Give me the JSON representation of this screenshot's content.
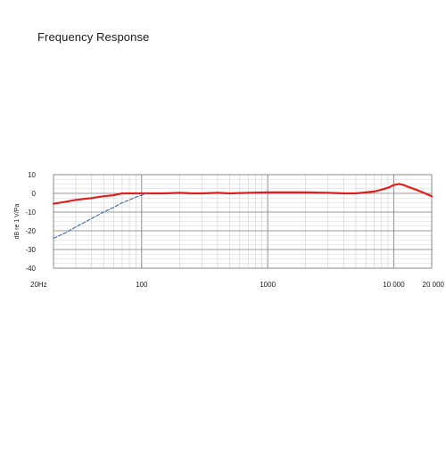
{
  "header": {
    "title": "Frequency Response"
  },
  "chart_data": {
    "type": "line",
    "title": "",
    "xlabel": "",
    "ylabel": "dB re 1 V/Pa",
    "x_scale": "log",
    "xlim": [
      20,
      20000
    ],
    "ylim": [
      -40,
      10
    ],
    "grid": true,
    "x_ticks": [
      {
        "value": 20,
        "label": "20Hz"
      },
      {
        "value": 100,
        "label": "100"
      },
      {
        "value": 1000,
        "label": "1000"
      },
      {
        "value": 10000,
        "label": "10 000"
      },
      {
        "value": 20000,
        "label": "20 000"
      }
    ],
    "y_ticks": [
      {
        "value": 10,
        "label": "10"
      },
      {
        "value": 0,
        "label": "0"
      },
      {
        "value": -10,
        "label": "-10"
      },
      {
        "value": -20,
        "label": "-20"
      },
      {
        "value": -30,
        "label": "-30"
      },
      {
        "value": -40,
        "label": "-40"
      }
    ],
    "series": [
      {
        "color": "#e02020",
        "style": "solid",
        "points": [
          [
            20,
            -5.5
          ],
          [
            25,
            -4.5
          ],
          [
            30,
            -3.5
          ],
          [
            40,
            -2.5
          ],
          [
            50,
            -1.5
          ],
          [
            60,
            -1
          ],
          [
            70,
            0
          ],
          [
            100,
            0
          ],
          [
            150,
            0
          ],
          [
            200,
            0.3
          ],
          [
            250,
            0
          ],
          [
            300,
            0
          ],
          [
            400,
            0.3
          ],
          [
            500,
            0
          ],
          [
            700,
            0.3
          ],
          [
            1000,
            0.5
          ],
          [
            1500,
            0.5
          ],
          [
            2000,
            0.5
          ],
          [
            3000,
            0.3
          ],
          [
            4000,
            0
          ],
          [
            5000,
            0
          ],
          [
            6000,
            0.5
          ],
          [
            7000,
            1
          ],
          [
            8000,
            2
          ],
          [
            9000,
            3
          ],
          [
            10000,
            4.5
          ],
          [
            11000,
            5
          ],
          [
            12000,
            4.5
          ],
          [
            13000,
            3.5
          ],
          [
            15000,
            2
          ],
          [
            17000,
            0.5
          ],
          [
            20000,
            -1.5
          ]
        ]
      },
      {
        "color": "#3a6ea5",
        "style": "dashed",
        "points": [
          [
            20,
            -24
          ],
          [
            25,
            -21
          ],
          [
            30,
            -18
          ],
          [
            40,
            -13.5
          ],
          [
            50,
            -10
          ],
          [
            60,
            -7.5
          ],
          [
            70,
            -5
          ],
          [
            80,
            -3.5
          ],
          [
            90,
            -2
          ],
          [
            100,
            -1
          ],
          [
            110,
            0
          ]
        ]
      }
    ]
  }
}
